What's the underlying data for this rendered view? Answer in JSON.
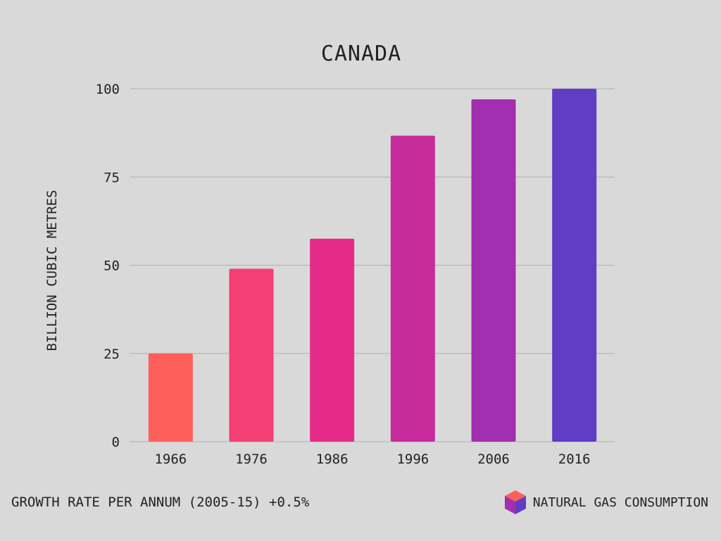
{
  "chart_data": {
    "type": "bar",
    "title": "CANADA",
    "ylabel": "BILLION CUBIC METRES",
    "xlabel": "",
    "categories": [
      "1966",
      "1976",
      "1986",
      "1996",
      "2006",
      "2016"
    ],
    "values": [
      25,
      49,
      57.5,
      86.7,
      97,
      100
    ],
    "bar_colors": [
      "#ff5f5b",
      "#f43f74",
      "#e52b88",
      "#c82b9c",
      "#a22eb0",
      "#5f3dc4"
    ],
    "ylim": [
      0,
      100
    ],
    "yticks": [
      0,
      25,
      50,
      75,
      100
    ],
    "grid": true
  },
  "footer": {
    "note": "GROWTH RATE PER ANNUM (2005-15) +0.5%"
  },
  "legend": {
    "label": "NATURAL GAS CONSUMPTION",
    "icon": "cube-icon",
    "icon_colors": [
      "#ff5f5b",
      "#a22eb0",
      "#5f3dc4"
    ]
  }
}
